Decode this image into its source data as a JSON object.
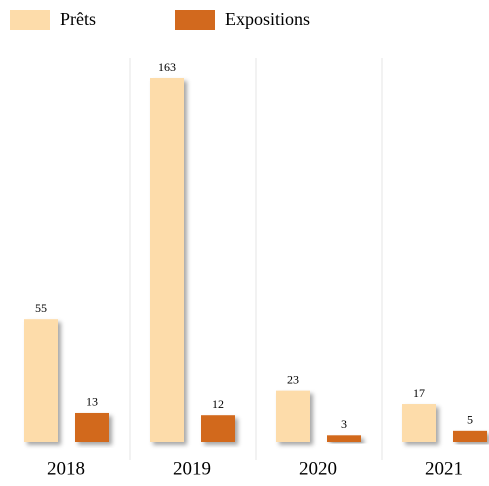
{
  "chart_data": {
    "type": "bar",
    "categories": [
      "2018",
      "2019",
      "2020",
      "2021"
    ],
    "series": [
      {
        "name": "Prêts",
        "color": "#fddcaa",
        "values": [
          55,
          163,
          23,
          17
        ]
      },
      {
        "name": "Expositions",
        "color": "#d2691e",
        "values": [
          13,
          12,
          3,
          5
        ]
      }
    ],
    "ylim": [
      0,
      163
    ]
  }
}
